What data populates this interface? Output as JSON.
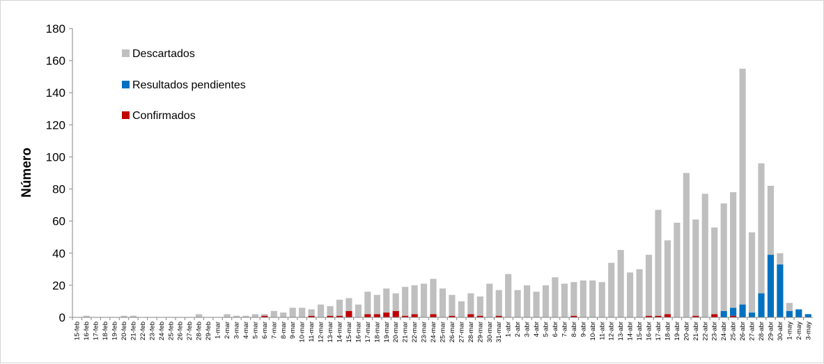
{
  "chart_data": {
    "type": "bar",
    "stacked": true,
    "ylabel": "Número",
    "xlabel": "",
    "ylim": [
      0,
      180
    ],
    "yticks": [
      0,
      20,
      40,
      60,
      80,
      100,
      120,
      140,
      160,
      180
    ],
    "grid": false,
    "legend_position": "top-left",
    "categories": [
      "15-feb",
      "16-feb",
      "17-feb",
      "18-feb",
      "19-feb",
      "20-feb",
      "21-feb",
      "22-feb",
      "23-feb",
      "24-feb",
      "25-feb",
      "26-feb",
      "27-feb",
      "28-feb",
      "29-feb",
      "1-mar",
      "2-mar",
      "3-mar",
      "4-mar",
      "5-mar",
      "6-mar",
      "7-mar",
      "8-mar",
      "9-mar",
      "10-mar",
      "11-mar",
      "12-mar",
      "13-mar",
      "14-mar",
      "15-mar",
      "16-mar",
      "17-mar",
      "18-mar",
      "19-mar",
      "20-mar",
      "21-mar",
      "22-mar",
      "23-mar",
      "24-mar",
      "25-mar",
      "26-mar",
      "27-mar",
      "28-mar",
      "29-mar",
      "30-mar",
      "31-mar",
      "1-abr",
      "2-abr",
      "3-abr",
      "4-abr",
      "5-abr",
      "6-abr",
      "7-abr",
      "8-abr",
      "9-abr",
      "10-abr",
      "11-abr",
      "12-abr",
      "13-abr",
      "14-abr",
      "15-abr",
      "16-abr",
      "17-abr",
      "18-abr",
      "19-abr",
      "20-abr",
      "21-abr",
      "22-abr",
      "23-abr",
      "24-abr",
      "25-abr",
      "26-abr",
      "27-abr",
      "28-abr",
      "29-abr",
      "30-abr",
      "1-may",
      "2-may",
      "3-may"
    ],
    "series": [
      {
        "name": "Confirmados",
        "color": "#c00000",
        "values": [
          0,
          0,
          0,
          0,
          0,
          0,
          0,
          0,
          0,
          0,
          0,
          0,
          0,
          0,
          0,
          0,
          0,
          0,
          0,
          0,
          1,
          0,
          0,
          0,
          0,
          1,
          0,
          1,
          1,
          4,
          0,
          2,
          2,
          3,
          4,
          1,
          2,
          0,
          2,
          0,
          1,
          0,
          2,
          1,
          0,
          1,
          0,
          0,
          0,
          0,
          0,
          0,
          0,
          1,
          0,
          0,
          0,
          0,
          0,
          0,
          0,
          1,
          1,
          2,
          0,
          0,
          1,
          0,
          2,
          0,
          1,
          0,
          0,
          0,
          0,
          0,
          0,
          0,
          0
        ]
      },
      {
        "name": "Resultados pendientes",
        "color": "#0070c0",
        "values": [
          0,
          0,
          0,
          0,
          0,
          0,
          0,
          0,
          0,
          0,
          0,
          0,
          0,
          0,
          0,
          0,
          0,
          0,
          0,
          0,
          0,
          0,
          0,
          0,
          0,
          0,
          0,
          0,
          0,
          0,
          0,
          0,
          0,
          0,
          0,
          0,
          0,
          0,
          0,
          0,
          0,
          0,
          0,
          0,
          0,
          0,
          0,
          0,
          0,
          0,
          0,
          0,
          0,
          0,
          0,
          0,
          0,
          0,
          0,
          0,
          0,
          0,
          0,
          0,
          0,
          0,
          0,
          0,
          0,
          4,
          5,
          8,
          3,
          15,
          39,
          33,
          4,
          5,
          2
        ]
      },
      {
        "name": "Descartados",
        "color": "#bfbfbf",
        "values": [
          0,
          1,
          0,
          0,
          0,
          1,
          1,
          0,
          0,
          0,
          0,
          0,
          0,
          2,
          0,
          0,
          2,
          1,
          1,
          2,
          1,
          4,
          3,
          6,
          6,
          4,
          8,
          6,
          10,
          8,
          8,
          14,
          12,
          15,
          11,
          18,
          18,
          21,
          22,
          18,
          13,
          10,
          13,
          12,
          21,
          16,
          27,
          17,
          20,
          16,
          20,
          25,
          21,
          21,
          23,
          23,
          22,
          34,
          42,
          28,
          30,
          38,
          66,
          46,
          59,
          90,
          60,
          77,
          54,
          67,
          72,
          147,
          50,
          81,
          43,
          7,
          5,
          0,
          0
        ]
      }
    ],
    "legend": [
      "Descartados",
      "Resultados pendientes",
      "Confirmados"
    ]
  }
}
